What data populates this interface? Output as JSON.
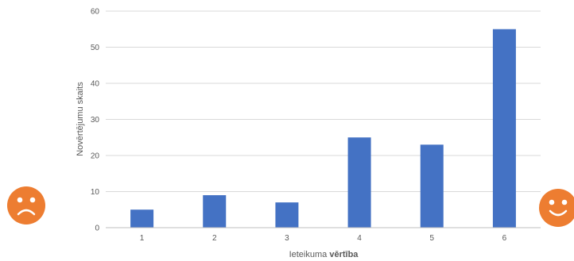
{
  "chart_data": {
    "type": "bar",
    "title": "",
    "xlabel_parts": [
      "Ieteikuma ",
      "vērtība"
    ],
    "ylabel": "Novērtējumu skaits",
    "categories": [
      "1",
      "2",
      "3",
      "4",
      "5",
      "6"
    ],
    "values": [
      5,
      9,
      7,
      25,
      23,
      55
    ],
    "ylim": [
      0,
      60
    ],
    "yticks": [
      0,
      10,
      20,
      30,
      40,
      50,
      60
    ],
    "grid": true,
    "legend": "none",
    "colors": {
      "bar": "#4472C4",
      "grid": "#D9D9D9",
      "axis": "#BFBFBF",
      "text": "#595959"
    }
  },
  "decorations": {
    "left_icon": "sad-face-icon",
    "right_icon": "happy-face-icon",
    "icon_color": "#ED7D31"
  }
}
